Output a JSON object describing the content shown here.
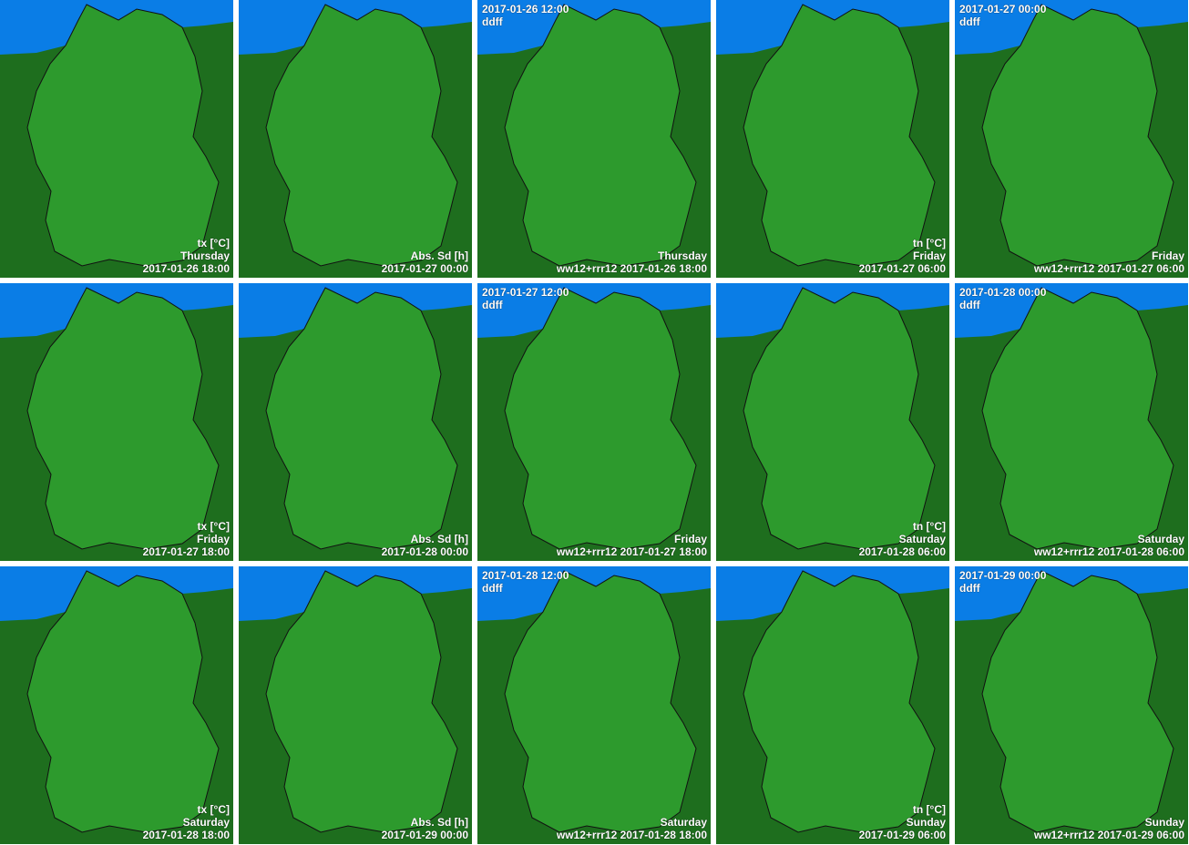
{
  "panels": [
    {
      "top": [],
      "bottom": [
        "tx [°C]",
        "Thursday",
        "2017-01-26 18:00"
      ]
    },
    {
      "top": [],
      "bottom": [
        "Abs. Sd [h]",
        "2017-01-27 00:00"
      ]
    },
    {
      "top": [
        "2017-01-26 12:00",
        "ddff"
      ],
      "bottom": [
        "Thursday",
        "ww12+rrr12 2017-01-26 18:00"
      ]
    },
    {
      "top": [],
      "bottom": [
        "tn [°C]",
        "Friday",
        "2017-01-27 06:00"
      ]
    },
    {
      "top": [
        "2017-01-27 00:00",
        "ddff"
      ],
      "bottom": [
        "Friday",
        "ww12+rrr12 2017-01-27 06:00"
      ]
    },
    {
      "top": [],
      "bottom": [
        "tx [°C]",
        "Friday",
        "2017-01-27 18:00"
      ]
    },
    {
      "top": [],
      "bottom": [
        "Abs. Sd [h]",
        "2017-01-28 00:00"
      ]
    },
    {
      "top": [
        "2017-01-27 12:00",
        "ddff"
      ],
      "bottom": [
        "Friday",
        "ww12+rrr12 2017-01-27 18:00"
      ]
    },
    {
      "top": [],
      "bottom": [
        "tn [°C]",
        "Saturday",
        "2017-01-28 06:00"
      ]
    },
    {
      "top": [
        "2017-01-28 00:00",
        "ddff"
      ],
      "bottom": [
        "Saturday",
        "ww12+rrr12 2017-01-28 06:00"
      ]
    },
    {
      "top": [],
      "bottom": [
        "tx [°C]",
        "Saturday",
        "2017-01-28 18:00"
      ]
    },
    {
      "top": [],
      "bottom": [
        "Abs. Sd [h]",
        "2017-01-29 00:00"
      ]
    },
    {
      "top": [
        "2017-01-28 12:00",
        "ddff"
      ],
      "bottom": [
        "Saturday",
        "ww12+rrr12 2017-01-28 18:00"
      ]
    },
    {
      "top": [],
      "bottom": [
        "tn [°C]",
        "Sunday",
        "2017-01-29 06:00"
      ]
    },
    {
      "top": [
        "2017-01-29 00:00",
        "ddff"
      ],
      "bottom": [
        "Sunday",
        "ww12+rrr12 2017-01-29 06:00"
      ]
    }
  ]
}
